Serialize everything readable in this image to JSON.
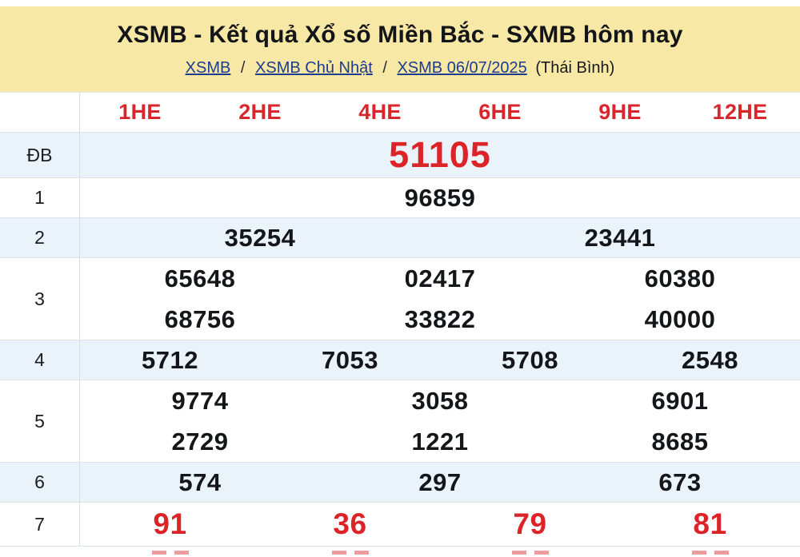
{
  "page": {
    "title": "XSMB - Kết quả Xổ số Miền Bắc - SXMB hôm nay",
    "breadcrumb": {
      "links": [
        "XSMB",
        "XSMB Chủ Nhật",
        "XSMB 06/07/2025"
      ],
      "separator": "/",
      "suffix": "(Thái Bình)"
    }
  },
  "table": {
    "column_headers": [
      "1HE",
      "2HE",
      "4HE",
      "6HE",
      "9HE",
      "12HE"
    ],
    "rows": [
      {
        "label": "ĐB",
        "values": [
          "51105"
        ],
        "size": "xl",
        "color": "red"
      },
      {
        "label": "1",
        "values": [
          "96859"
        ]
      },
      {
        "label": "2",
        "values": [
          "35254",
          "23441"
        ]
      },
      {
        "label": "3",
        "lines": [
          [
            "65648",
            "02417",
            "60380"
          ],
          [
            "68756",
            "33822",
            "40000"
          ]
        ]
      },
      {
        "label": "4",
        "values": [
          "5712",
          "7053",
          "5708",
          "2548"
        ]
      },
      {
        "label": "5",
        "lines": [
          [
            "9774",
            "3058",
            "6901"
          ],
          [
            "2729",
            "1221",
            "8685"
          ]
        ]
      },
      {
        "label": "6",
        "values": [
          "574",
          "297",
          "673"
        ]
      },
      {
        "label": "7",
        "values": [
          "91",
          "36",
          "79",
          "81"
        ],
        "color": "red"
      }
    ],
    "partial_next_row_visible": true
  },
  "colors": {
    "header_bg": "#F8E8A6",
    "accent_red": "#DC2328",
    "link_blue": "#1d3c8e",
    "stripe_blue": "#EAF2FA"
  }
}
